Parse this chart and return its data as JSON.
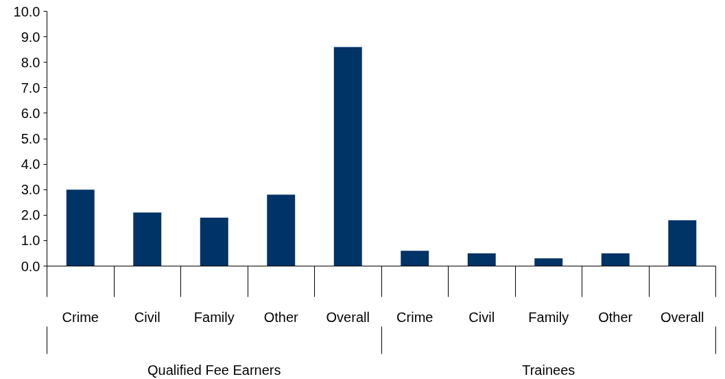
{
  "chart_data": {
    "type": "bar",
    "categories": [
      "Crime",
      "Civil",
      "Family",
      "Other",
      "Overall",
      "Crime",
      "Civil",
      "Family",
      "Other",
      "Overall"
    ],
    "series": [
      {
        "color": "#003366",
        "values": [
          3.0,
          2.1,
          1.9,
          2.8,
          8.6,
          0.6,
          0.5,
          0.3,
          0.5,
          1.8
        ]
      }
    ],
    "annotations": [
      "Qualified Fee Earners",
      "Trainees"
    ],
    "ylim": [
      0,
      10
    ],
    "yticks": [
      {
        "value": 0,
        "label": "0.0"
      },
      {
        "value": 1,
        "label": "1.0"
      },
      {
        "value": 2,
        "label": "2.0"
      },
      {
        "value": 3,
        "label": "3.0"
      },
      {
        "value": 4,
        "label": "4.0"
      },
      {
        "value": 5,
        "label": "5.0"
      },
      {
        "value": 6,
        "label": "6.0"
      },
      {
        "value": 7,
        "label": "7.0"
      },
      {
        "value": 8,
        "label": "8.0"
      },
      {
        "value": 9,
        "label": "9.0"
      },
      {
        "value": 10,
        "label": "10.0"
      }
    ],
    "grid": false
  }
}
